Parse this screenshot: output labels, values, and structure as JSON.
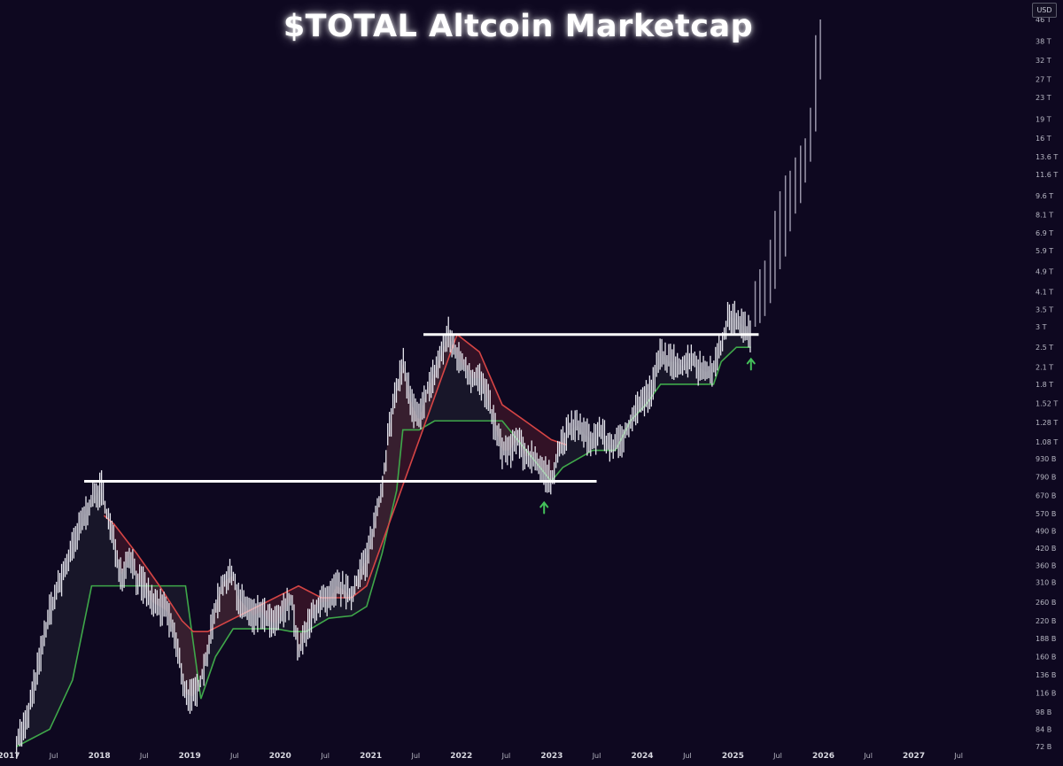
{
  "title": "$TOTAL Altcoin Marketcap",
  "currency_badge": "USD",
  "colors": {
    "background": "#0e0820",
    "candle": "#e6e6ee",
    "candle_projected": "#9a96aa",
    "support_band": "#3fa84a",
    "resistance_band": "#d64545",
    "horizontal_level": "#ffffff",
    "arrow": "#44c15a",
    "axis_text": "#b8b8c4"
  },
  "chart_data": {
    "type": "line",
    "title": "$TOTAL Altcoin Marketcap",
    "xlabel": "",
    "ylabel": "",
    "y_scale": "log",
    "y_unit": "USD",
    "x_range": [
      "2017-01-01",
      "2027-12-01"
    ],
    "y_range_usd": [
      72000000000,
      46000000000000
    ],
    "grid": false,
    "y_tick_labels": [
      "46 T",
      "38 T",
      "32 T",
      "27 T",
      "23 T",
      "19 T",
      "16 T",
      "13.6 T",
      "11.6 T",
      "9.6 T",
      "8.1 T",
      "6.9 T",
      "5.9 T",
      "4.9 T",
      "4.1 T",
      "3.5 T",
      "3 T",
      "2.5 T",
      "2.1 T",
      "1.8 T",
      "1.52 T",
      "1.28 T",
      "1.08 T",
      "930 B",
      "790 B",
      "670 B",
      "570 B",
      "490 B",
      "420 B",
      "360 B",
      "310 B",
      "260 B",
      "220 B",
      "188 B",
      "160 B",
      "136 B",
      "116 B",
      "98 B",
      "84 B",
      "72 B"
    ],
    "y_tick_values": [
      46000000000000,
      38000000000000,
      32000000000000,
      27000000000000,
      23000000000000,
      19000000000000,
      16000000000000,
      13600000000000,
      11600000000000,
      9600000000000,
      8100000000000,
      6900000000000,
      5900000000000,
      4900000000000,
      4100000000000,
      3500000000000,
      3000000000000,
      2500000000000,
      2100000000000,
      1800000000000,
      1520000000000,
      1280000000000,
      1080000000000,
      930000000000,
      790000000000,
      670000000000,
      570000000000,
      490000000000,
      420000000000,
      360000000000,
      310000000000,
      260000000000,
      220000000000,
      188000000000,
      160000000000,
      136000000000,
      116000000000,
      98000000000,
      84000000000,
      72000000000
    ],
    "x_tick_labels": [
      "2017",
      "Jul",
      "2018",
      "Jul",
      "2019",
      "Jul",
      "2020",
      "Jul",
      "2021",
      "Jul",
      "2022",
      "Jul",
      "2023",
      "Jul",
      "2024",
      "Jul",
      "2025",
      "Jul",
      "2026",
      "Jul",
      "2027",
      "Jul"
    ],
    "x_tick_values": [
      "2017-01-01",
      "2017-07-01",
      "2018-01-01",
      "2018-07-01",
      "2019-01-01",
      "2019-07-01",
      "2020-01-01",
      "2020-07-01",
      "2021-01-01",
      "2021-07-01",
      "2022-01-01",
      "2022-07-01",
      "2023-01-01",
      "2023-07-01",
      "2024-01-01",
      "2024-07-01",
      "2025-01-01",
      "2025-07-01",
      "2026-01-01",
      "2026-07-01",
      "2027-01-01",
      "2027-07-01"
    ],
    "price_series": {
      "dates": [
        "2017-02-01",
        "2017-03-15",
        "2017-05-01",
        "2017-06-15",
        "2017-08-01",
        "2017-09-15",
        "2017-11-01",
        "2017-12-01",
        "2018-01-10",
        "2018-02-01",
        "2018-03-01",
        "2018-04-01",
        "2018-05-05",
        "2018-06-01",
        "2018-07-01",
        "2018-08-01",
        "2018-09-01",
        "2018-10-01",
        "2018-11-01",
        "2018-12-15",
        "2019-01-15",
        "2019-02-15",
        "2019-03-15",
        "2019-04-15",
        "2019-05-15",
        "2019-06-25",
        "2019-07-15",
        "2019-08-15",
        "2019-09-15",
        "2019-10-15",
        "2019-11-15",
        "2019-12-15",
        "2020-02-15",
        "2020-03-15",
        "2020-04-15",
        "2020-05-15",
        "2020-06-15",
        "2020-07-15",
        "2020-08-15",
        "2020-09-15",
        "2020-10-15",
        "2020-11-15",
        "2020-12-15",
        "2021-01-15",
        "2021-02-15",
        "2021-03-15",
        "2021-04-15",
        "2021-05-10",
        "2021-06-15",
        "2021-07-15",
        "2021-08-15",
        "2021-09-15",
        "2021-10-15",
        "2021-11-10",
        "2021-12-15",
        "2022-01-15",
        "2022-02-15",
        "2022-03-15",
        "2022-04-15",
        "2022-05-15",
        "2022-06-15",
        "2022-07-15",
        "2022-08-15",
        "2022-09-15",
        "2022-10-15",
        "2022-11-15",
        "2022-12-30",
        "2023-01-15",
        "2023-02-15",
        "2023-03-15",
        "2023-04-15",
        "2023-05-15",
        "2023-06-15",
        "2023-07-15",
        "2023-08-15",
        "2023-09-15",
        "2023-10-15",
        "2023-11-15",
        "2023-12-15",
        "2024-01-15",
        "2024-02-15",
        "2024-03-15",
        "2024-04-15",
        "2024-05-15",
        "2024-06-15",
        "2024-07-15",
        "2024-08-15",
        "2024-09-15",
        "2024-10-15",
        "2024-11-15",
        "2024-12-15",
        "2025-01-15",
        "2025-02-15",
        "2025-03-15"
      ],
      "values_usd_b": [
        76,
        90,
        150,
        240,
        320,
        420,
        560,
        640,
        720,
        560,
        440,
        330,
        400,
        320,
        300,
        260,
        250,
        240,
        190,
        115,
        112,
        130,
        170,
        250,
        310,
        330,
        270,
        250,
        230,
        240,
        220,
        215,
        270,
        165,
        200,
        240,
        260,
        260,
        300,
        290,
        270,
        340,
        380,
        520,
        720,
        1200,
        1700,
        2200,
        1500,
        1300,
        1700,
        2000,
        2400,
        2800,
        2300,
        2100,
        1900,
        1900,
        1600,
        1250,
        1000,
        1000,
        1100,
        950,
        950,
        870,
        760,
        900,
        1100,
        1200,
        1250,
        1150,
        1100,
        1200,
        1050,
        1050,
        1100,
        1300,
        1500,
        1600,
        1800,
        2400,
        2200,
        2200,
        2100,
        2300,
        2100,
        2000,
        2100,
        2500,
        3300,
        3200,
        3000,
        2750
      ]
    },
    "support_band": {
      "dates": [
        "2017-02-01",
        "2017-06-15",
        "2017-09-15",
        "2017-12-01",
        "2018-03-01",
        "2018-08-01",
        "2018-12-15",
        "2019-02-15",
        "2019-04-15",
        "2019-06-25",
        "2019-12-15",
        "2020-02-15",
        "2020-04-15",
        "2020-07-15",
        "2020-10-15",
        "2020-12-15",
        "2021-02-15",
        "2021-04-15",
        "2021-05-10",
        "2021-07-15",
        "2021-09-15",
        "2021-11-10",
        "2022-03-15",
        "2022-06-15",
        "2022-12-30",
        "2023-02-15",
        "2023-06-15",
        "2023-09-15",
        "2023-11-15",
        "2024-01-15",
        "2024-03-15",
        "2024-06-15",
        "2024-10-15",
        "2024-11-15",
        "2025-01-15",
        "2025-03-15"
      ],
      "values_usd_b": [
        72,
        84,
        130,
        300,
        300,
        300,
        300,
        110,
        160,
        205,
        205,
        200,
        200,
        225,
        230,
        250,
        400,
        700,
        1200,
        1200,
        1300,
        1300,
        1300,
        1300,
        760,
        860,
        1000,
        1000,
        1300,
        1500,
        1800,
        1800,
        1800,
        2200,
        2500,
        2500
      ]
    },
    "resistance_band": {
      "dates": [
        "2018-01-20",
        "2018-03-01",
        "2018-06-01",
        "2018-09-01",
        "2018-12-01",
        "2019-01-15",
        "2019-03-15",
        "2020-03-15",
        "2020-06-15",
        "2020-10-15",
        "2020-12-15",
        "2021-12-15",
        "2022-03-15",
        "2022-06-15",
        "2022-09-15",
        "2022-12-30",
        "2023-03-01"
      ],
      "values_usd_b": [
        560,
        520,
        400,
        300,
        220,
        200,
        200,
        300,
        270,
        270,
        300,
        2800,
        2400,
        1500,
        1300,
        1100,
        1050
      ]
    },
    "projected_wicks": {
      "dates": [
        "2025-04-01",
        "2025-04-20",
        "2025-05-10",
        "2025-06-01",
        "2025-06-20",
        "2025-07-10",
        "2025-08-01",
        "2025-08-20",
        "2025-09-10",
        "2025-10-01",
        "2025-10-20",
        "2025-11-10",
        "2025-12-01",
        "2025-12-20"
      ],
      "lows_usd_b": [
        3000,
        3100,
        3300,
        3700,
        4200,
        5000,
        5600,
        7000,
        8200,
        9000,
        10800,
        13000,
        17000,
        27000
      ],
      "highs_usd_b": [
        4500,
        5000,
        5400,
        6500,
        8400,
        10000,
        11500,
        12000,
        13500,
        15000,
        16000,
        21000,
        40000,
        46000
      ]
    },
    "horizontal_levels": [
      {
        "value_usd_b": 760,
        "x_start": "2017-11-01",
        "x_end": "2023-07-01"
      },
      {
        "value_usd_b": 2800,
        "x_start": "2021-08-01",
        "x_end": "2025-04-15"
      }
    ],
    "arrows": [
      {
        "date": "2022-12-01",
        "value_usd_b": 600,
        "direction": "up"
      },
      {
        "date": "2025-03-15",
        "value_usd_b": 2150,
        "direction": "up"
      }
    ]
  }
}
